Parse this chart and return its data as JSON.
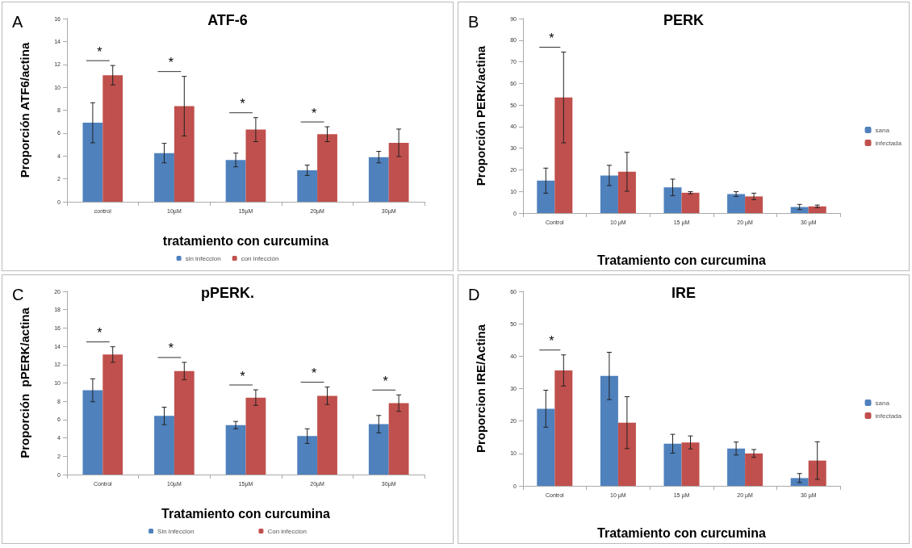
{
  "chart_data": [
    {
      "type": "bar",
      "title": "ATF-6",
      "xlabel": "tratamiento con curcumina",
      "ylabel": "Proporción ATF6/actina",
      "categories": [
        "control",
        "10µM",
        "15µM",
        "20µM",
        "30µM"
      ],
      "series": [
        {
          "name": "sin infeccion",
          "color": "#4f81bd",
          "values": [
            6.9,
            4.25,
            3.65,
            2.75,
            3.9
          ],
          "errors": [
            1.75,
            0.85,
            0.6,
            0.45,
            0.5
          ]
        },
        {
          "name": "con infección",
          "color": "#c0504d",
          "values": [
            11.05,
            8.35,
            6.3,
            5.9,
            5.15
          ],
          "errors": [
            0.85,
            2.6,
            1.05,
            0.65,
            1.2
          ]
        }
      ],
      "ylim": [
        0,
        16
      ],
      "yticks": [
        0,
        2,
        4,
        6,
        8,
        10,
        12,
        14,
        16
      ],
      "grid": false,
      "legend": "bottom",
      "annotations": [
        "A",
        "*",
        "*",
        "*",
        "*"
      ]
    },
    {
      "type": "bar",
      "title": "PERK",
      "xlabel": "Tratamiento con curcumina",
      "ylabel": "Proporción PERK/actina",
      "categories": [
        "Control",
        "10 µM",
        "15 µM",
        "20 µM",
        "30 µM"
      ],
      "series": [
        {
          "name": "sana",
          "color": "#4f81bd",
          "values": [
            15,
            17.4,
            11.9,
            8.8,
            2.8
          ],
          "errors": [
            5.8,
            4.7,
            3.8,
            1.1,
            1.2
          ]
        },
        {
          "name": "infectada",
          "color": "#c0504d",
          "values": [
            53.5,
            19.1,
            9.4,
            7.7,
            3.1
          ],
          "errors": [
            21,
            9,
            0.5,
            1.5,
            0.6
          ]
        }
      ],
      "ylim": [
        0,
        90
      ],
      "yticks": [
        0,
        10,
        20,
        30,
        40,
        50,
        60,
        70,
        80,
        90
      ],
      "grid": false,
      "legend": "right",
      "annotations": [
        "B",
        "*"
      ]
    },
    {
      "type": "bar",
      "title": "pPERK.",
      "xlabel": "Tratamiento con curcumina",
      "ylabel": "Proporción  pPERK/actina",
      "categories": [
        "Control",
        "10µM",
        "15µM",
        "20µM",
        "30µM"
      ],
      "series": [
        {
          "name": "Sin infeccion",
          "color": "#4f81bd",
          "values": [
            9.2,
            6.4,
            5.4,
            4.2,
            5.5
          ],
          "errors": [
            1.25,
            0.95,
            0.4,
            0.8,
            0.95
          ]
        },
        {
          "name": "Con infeccion",
          "color": "#c0504d",
          "values": [
            13.1,
            11.3,
            8.4,
            8.6,
            7.8
          ],
          "errors": [
            0.85,
            0.95,
            0.85,
            0.95,
            0.9
          ]
        }
      ],
      "ylim": [
        0,
        20
      ],
      "yticks": [
        0,
        2,
        4,
        6,
        8,
        10,
        12,
        14,
        16,
        18,
        20
      ],
      "grid": false,
      "legend": "bottom",
      "annotations": [
        "C",
        "*",
        "*",
        "*",
        "*",
        "*"
      ]
    },
    {
      "type": "bar",
      "title": "IRE",
      "xlabel": "Tratamiento con curcumina",
      "ylabel": "Proporcion IRE/Actina",
      "categories": [
        "Control",
        "10 µM",
        "15 µM",
        "20 µM",
        "30 µM"
      ],
      "series": [
        {
          "name": "sana",
          "color": "#4f81bd",
          "values": [
            23.8,
            33.9,
            13.0,
            11.5,
            2.4
          ],
          "errors": [
            5.7,
            7.3,
            2.9,
            2,
            1.4
          ]
        },
        {
          "name": "infectada",
          "color": "#c0504d",
          "values": [
            35.6,
            19.5,
            13.4,
            10,
            7.8
          ],
          "errors": [
            4.8,
            8,
            2,
            1.2,
            5.8
          ]
        }
      ],
      "ylim": [
        0,
        60
      ],
      "yticks": [
        0,
        10,
        20,
        30,
        40,
        50,
        60
      ],
      "grid": false,
      "legend": "right",
      "annotations": [
        "D",
        "*"
      ]
    }
  ]
}
